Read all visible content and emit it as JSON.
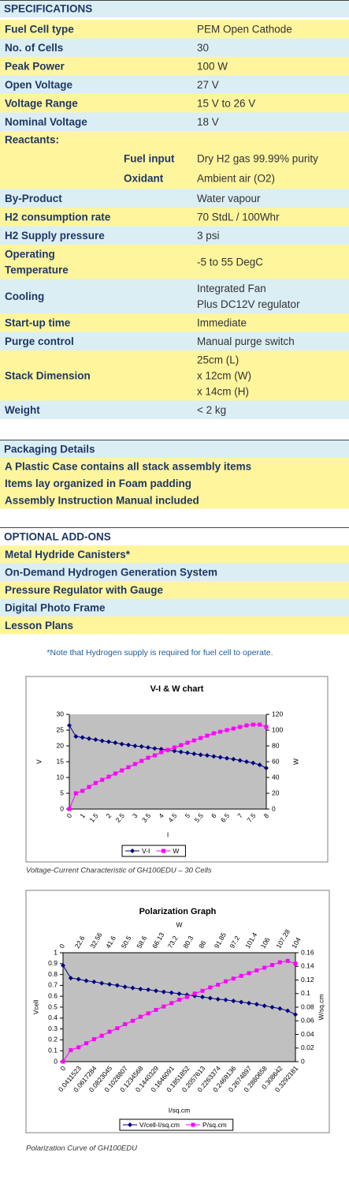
{
  "specifications": {
    "title": "SPECIFICATIONS",
    "rows": [
      {
        "label": [
          "Fuel Cell type"
        ],
        "value": [
          "PEM Open Cathode"
        ]
      },
      {
        "label": [
          "No. of Cells"
        ],
        "value": [
          "30"
        ]
      },
      {
        "label": [
          "Peak Power"
        ],
        "value": [
          "100 W"
        ]
      },
      {
        "label": [
          "Open Voltage"
        ],
        "value": [
          "27 V"
        ]
      },
      {
        "label": [
          "Voltage Range"
        ],
        "value": [
          "15 V to 26 V"
        ]
      },
      {
        "label": [
          "Nominal Voltage"
        ],
        "value": [
          "18 V"
        ]
      },
      {
        "label": [
          "Reactants:"
        ],
        "items": [
          {
            "label": "Fuel input",
            "value": "Dry H2 gas 99.99% purity"
          },
          {
            "label": "Oxidant",
            "value": "Ambient air (O2)"
          }
        ]
      },
      {
        "label": [
          "By-Product"
        ],
        "value": [
          "Water vapour"
        ]
      },
      {
        "label": [
          "H2 consumption rate"
        ],
        "value": [
          "70 StdL / 100Whr"
        ]
      },
      {
        "label": [
          "H2 Supply pressure"
        ],
        "value": [
          "3 psi"
        ]
      },
      {
        "label": [
          "Operating",
          "Temperature"
        ],
        "value": [
          "-5 to 55 DegC"
        ]
      },
      {
        "label": [
          "Cooling"
        ],
        "value": [
          "Integrated Fan",
          "Plus DC12V regulator"
        ]
      },
      {
        "label": [
          "Start-up time"
        ],
        "value": [
          "Immediate"
        ]
      },
      {
        "label": [
          "Purge control"
        ],
        "value": [
          "Manual purge switch"
        ]
      },
      {
        "label": [
          "Stack Dimension"
        ],
        "value": [
          "25cm (L)",
          "x 12cm (W)",
          "x 14cm (H)"
        ]
      },
      {
        "label": [
          "Weight"
        ],
        "value": [
          "< 2 kg"
        ]
      }
    ]
  },
  "packaging": {
    "title": "Packaging Details",
    "items": [
      "A Plastic Case contains all stack assembly items",
      "Items lay organized in Foam padding",
      "Assembly Instruction Manual included"
    ]
  },
  "addons": {
    "title": "OPTIONAL ADD-ONS",
    "items": [
      "Metal Hydride Canisters*",
      "On-Demand Hydrogen Generation System",
      "Pressure Regulator with Gauge",
      "Digital Photo Frame",
      "Lesson Plans"
    ]
  },
  "note": "*Note that Hydrogen supply is required for fuel cell to operate.",
  "chart_data": [
    {
      "type": "line",
      "title": "V-I & W chart",
      "xlabel": "I",
      "ylabel": "V",
      "y2label": "W",
      "categories": [
        0,
        null,
        1,
        null,
        1.5,
        null,
        2,
        null,
        2.5,
        null,
        3,
        null,
        3.5,
        null,
        4,
        null,
        4.5,
        null,
        5,
        null,
        5.5,
        null,
        6,
        null,
        6.5,
        null,
        7,
        null,
        7.5,
        null,
        8
      ],
      "series": [
        {
          "name": "V-I",
          "color": "#000080",
          "marker": "diamond",
          "values": [
            26.5,
            23,
            22.7,
            22.3,
            22,
            21.6,
            21.3,
            21,
            20.6,
            20.3,
            20,
            19.8,
            19.5,
            19.2,
            19,
            18.7,
            18.4,
            18.1,
            17.8,
            17.5,
            17.2,
            17,
            16.7,
            16.4,
            16.1,
            15.8,
            15.4,
            15,
            14.6,
            14,
            13
          ]
        },
        {
          "name": "W",
          "color": "#ff00ff",
          "marker": "square",
          "axis": "y2",
          "values": [
            0,
            20,
            23,
            28,
            33,
            37,
            41,
            45,
            49,
            53,
            57,
            61,
            65,
            68,
            72,
            75,
            78,
            81,
            84,
            87,
            90,
            93,
            96,
            98,
            100,
            102,
            104,
            106,
            107,
            107,
            104
          ]
        }
      ],
      "ylim": [
        0,
        30
      ],
      "yticks": [
        0,
        5,
        10,
        15,
        20,
        25,
        30
      ],
      "y2lim": [
        0,
        120
      ],
      "y2ticks": [
        0,
        20,
        40,
        60,
        80,
        100,
        120
      ],
      "legend": "bottom",
      "caption": "Voltage-Current Characteristic of GH100EDU – 30 Cells"
    },
    {
      "type": "line",
      "title": "Polarization Graph",
      "xlabel": "I/sq.cm",
      "x2label": "W",
      "ylabel": "Vcell",
      "y2label": "W/sq.cm",
      "categories": [
        "0",
        null,
        "0.0411523",
        null,
        "0.0617284",
        null,
        "0.0823045",
        null,
        "0.1028807",
        null,
        "0.1234568",
        null,
        "0.1440329",
        null,
        "0.1646091",
        null,
        "0.1851852",
        null,
        "0.2057613",
        null,
        "0.2263374",
        null,
        "0.2469136",
        null,
        "0.2674897",
        null,
        "0.2880658",
        null,
        "0.308642",
        null,
        "0.3292181"
      ],
      "top_categories": [
        "0",
        null,
        "22.6",
        null,
        "32.56",
        null,
        "41.6",
        null,
        "50.5",
        null,
        "58.6",
        null,
        "66.13",
        null,
        "73.2",
        null,
        "80.3",
        null,
        "86",
        null,
        "91.85",
        null,
        "97.2",
        null,
        "101.4",
        null,
        "106",
        null,
        "107.28",
        null,
        "104"
      ],
      "series": [
        {
          "name": "V/cell-I/sq.cm",
          "color": "#000080",
          "marker": "diamond",
          "values": [
            0.883,
            0.767,
            0.757,
            0.743,
            0.733,
            0.72,
            0.71,
            0.7,
            0.687,
            0.677,
            0.667,
            0.66,
            0.65,
            0.64,
            0.633,
            0.623,
            0.613,
            0.603,
            0.593,
            0.583,
            0.573,
            0.567,
            0.557,
            0.547,
            0.537,
            0.527,
            0.513,
            0.5,
            0.487,
            0.467,
            0.433
          ]
        },
        {
          "name": "P/sq.cm",
          "color": "#ff00ff",
          "marker": "square",
          "axis": "y2",
          "values": [
            0,
            0.017,
            0.021,
            0.027,
            0.033,
            0.038,
            0.044,
            0.049,
            0.055,
            0.06,
            0.066,
            0.071,
            0.076,
            0.081,
            0.086,
            0.091,
            0.095,
            0.1,
            0.104,
            0.109,
            0.113,
            0.118,
            0.122,
            0.126,
            0.13,
            0.134,
            0.138,
            0.142,
            0.146,
            0.148,
            0.144
          ]
        }
      ],
      "ylim": [
        0,
        1
      ],
      "yticks": [
        0,
        0.1,
        0.2,
        0.3,
        0.4,
        0.5,
        0.6,
        0.7,
        0.8,
        0.9,
        1
      ],
      "y2lim": [
        0,
        0.16
      ],
      "y2ticks": [
        0,
        0.02,
        0.04,
        0.06,
        0.08,
        0.1,
        0.12,
        0.14,
        0.16
      ],
      "legend": "bottom",
      "caption": "Polarization Curve of GH100EDU"
    }
  ]
}
